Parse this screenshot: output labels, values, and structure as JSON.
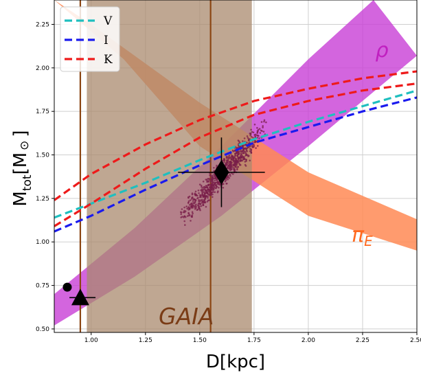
{
  "chart_data": {
    "type": "scatter",
    "xlabel": "D[kpc]",
    "ylabel_parts": {
      "main": "M",
      "sub": "tot",
      "rest": "[M",
      "odot": "⊙",
      "close": "]"
    },
    "xlim": [
      0.83,
      2.5
    ],
    "ylim": [
      0.48,
      2.39
    ],
    "x_ticks": [
      1.0,
      1.25,
      1.5,
      1.75,
      2.0,
      2.25,
      2.5
    ],
    "x_tick_labels": [
      "1.00",
      "1.25",
      "1.50",
      "1.75",
      "2.00",
      "2.25",
      "2.50"
    ],
    "y_ticks": [
      0.5,
      0.75,
      1.0,
      1.25,
      1.5,
      1.75,
      2.0,
      2.25
    ],
    "y_tick_labels": [
      "0.50",
      "0.75",
      "1.00",
      "1.25",
      "1.50",
      "1.75",
      "2.00",
      "2.25"
    ],
    "grid": true,
    "legend_position": "top-left",
    "legend": [
      {
        "label": "V",
        "color": "#1fbfbf"
      },
      {
        "label": "I",
        "color": "#1a1aee"
      },
      {
        "label": "K",
        "color": "#ee1a1a"
      }
    ],
    "colors": {
      "rho_band": "#c83ed6",
      "piE_band": "#ff8a55",
      "gaia_band": "#a98a6e",
      "gaia_line": "#8b4513",
      "samples": "#7a1f4a",
      "piE_label": "#ff6a20",
      "rho_label": "#c020c0",
      "gaia_label": "#7a3c16"
    },
    "region_labels": {
      "rho": "ρ",
      "piE_main": "π",
      "piE_sub": "E",
      "gaia": "GAIA"
    },
    "bands": {
      "rho": {
        "upper": [
          [
            0.83,
            0.7
          ],
          [
            1.2,
            1.08
          ],
          [
            1.6,
            1.55
          ],
          [
            2.0,
            2.05
          ],
          [
            2.3,
            2.39
          ]
        ],
        "lower": [
          [
            0.83,
            0.52
          ],
          [
            1.2,
            0.8
          ],
          [
            1.6,
            1.15
          ],
          [
            2.0,
            1.55
          ],
          [
            2.5,
            2.07
          ]
        ]
      },
      "piE": {
        "upper": [
          [
            0.83,
            2.39
          ],
          [
            1.0,
            2.25
          ],
          [
            1.5,
            1.8
          ],
          [
            2.0,
            1.4
          ],
          [
            2.5,
            1.13
          ]
        ],
        "lower": [
          [
            0.83,
            2.39
          ],
          [
            1.15,
            2.05
          ],
          [
            1.5,
            1.55
          ],
          [
            2.0,
            1.15
          ],
          [
            2.5,
            0.95
          ]
        ]
      },
      "gaia": {
        "x_min": 0.98,
        "x_max": 1.74
      }
    },
    "gaia_lines_x": [
      0.95,
      1.55
    ],
    "series": [
      {
        "name": "V",
        "style": "dashed",
        "points": [
          [
            0.83,
            1.14
          ],
          [
            1.0,
            1.22
          ],
          [
            1.25,
            1.34
          ],
          [
            1.5,
            1.47
          ],
          [
            1.75,
            1.59
          ],
          [
            2.0,
            1.69
          ],
          [
            2.25,
            1.78
          ],
          [
            2.5,
            1.87
          ]
        ]
      },
      {
        "name": "I",
        "style": "dashed",
        "points": [
          [
            0.83,
            1.06
          ],
          [
            1.0,
            1.15
          ],
          [
            1.25,
            1.3
          ],
          [
            1.5,
            1.44
          ],
          [
            1.75,
            1.57
          ],
          [
            2.0,
            1.66
          ],
          [
            2.25,
            1.75
          ],
          [
            2.5,
            1.83
          ]
        ]
      },
      {
        "name": "K",
        "style": "dashed",
        "points": [
          [
            0.83,
            1.24
          ],
          [
            1.0,
            1.39
          ],
          [
            1.25,
            1.56
          ],
          [
            1.5,
            1.7
          ],
          [
            1.75,
            1.81
          ],
          [
            2.0,
            1.88
          ],
          [
            2.25,
            1.94
          ],
          [
            2.5,
            1.98
          ]
        ]
      },
      {
        "name": "",
        "style": "dashed",
        "points": [
          [
            0.83,
            1.09
          ],
          [
            1.0,
            1.22
          ],
          [
            1.25,
            1.42
          ],
          [
            1.5,
            1.6
          ],
          [
            1.75,
            1.73
          ],
          [
            2.0,
            1.81
          ],
          [
            2.25,
            1.87
          ],
          [
            2.5,
            1.91
          ]
        ]
      }
    ],
    "sample_cloud": {
      "x_range": [
        1.4,
        1.82
      ],
      "center_line": [
        [
          1.42,
          1.15
        ],
        [
          1.6,
          1.39
        ],
        [
          1.8,
          1.65
        ]
      ],
      "width": 0.05
    },
    "markers": [
      {
        "shape": "diamond",
        "x": 1.6,
        "y": 1.4,
        "xerr": [
          1.4,
          1.8
        ],
        "yerr": [
          1.2,
          1.6
        ]
      },
      {
        "shape": "triangle",
        "x": 0.95,
        "y": 0.68,
        "xerr": [
          0.9,
          1.02
        ],
        "yerr": null
      },
      {
        "shape": "circle",
        "x": 0.89,
        "y": 0.74,
        "xerr": null,
        "yerr": null
      }
    ]
  }
}
